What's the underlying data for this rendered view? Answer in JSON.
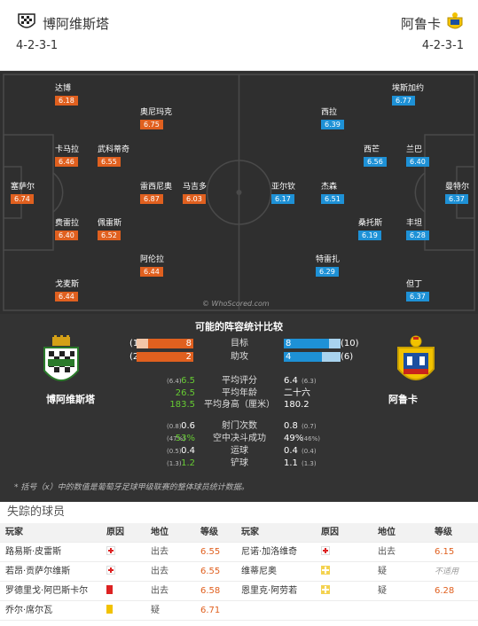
{
  "header": {
    "home_team": "博阿维斯塔",
    "away_team": "阿鲁卡",
    "home_formation": "4-2-3-1",
    "away_formation": "4-2-3-1"
  },
  "pitch": {
    "watermark": "© WhoScored.com",
    "home_players": [
      {
        "name": "达博",
        "rating": "6.18"
      },
      {
        "name": "奥尼玛克",
        "rating": "6.75"
      },
      {
        "name": "卡马拉",
        "rating": "6.46"
      },
      {
        "name": "武科蒂奇",
        "rating": "6.55"
      },
      {
        "name": "塞萨尔",
        "rating": "6.74"
      },
      {
        "name": "雷西尼奥",
        "rating": "6.87"
      },
      {
        "name": "马吉多",
        "rating": "6.03"
      },
      {
        "name": "费雷拉",
        "rating": "6.40"
      },
      {
        "name": "佩雷斯",
        "rating": "6.52"
      },
      {
        "name": "阿伦拉",
        "rating": "6.44"
      },
      {
        "name": "戈麦斯",
        "rating": "6.44"
      }
    ],
    "away_players": [
      {
        "name": "埃斯加约",
        "rating": "6.77"
      },
      {
        "name": "西拉",
        "rating": "6.39"
      },
      {
        "name": "西芒",
        "rating": "6.56"
      },
      {
        "name": "兰巴",
        "rating": "6.40"
      },
      {
        "name": "亚尔钦",
        "rating": "6.17"
      },
      {
        "name": "杰森",
        "rating": "6.51"
      },
      {
        "name": "曼特尔",
        "rating": "6.37"
      },
      {
        "name": "桑托斯",
        "rating": "6.19"
      },
      {
        "name": "丰坦",
        "rating": "6.28"
      },
      {
        "name": "特雷扎",
        "rating": "6.29"
      },
      {
        "name": "但丁",
        "rating": "6.37"
      }
    ]
  },
  "comparison": {
    "title": "可能的阵容统计比较",
    "home_name": "博阿维斯塔",
    "away_name": "阿鲁卡",
    "bars": [
      {
        "label": "目标",
        "home": "8",
        "home_league": "(10)",
        "home_fraction": 0.8,
        "away": "8",
        "away_league": "(10)",
        "away_fraction": 0.8
      },
      {
        "label": "助攻",
        "home": "2",
        "home_league": "(2)",
        "home_fraction": 1.0,
        "away": "4",
        "away_league": "(6)",
        "away_fraction": 0.67
      }
    ],
    "rows": [
      {
        "label": "平均评分",
        "home_paren": "(6.4)",
        "home": "6.5",
        "away": "6.4",
        "away_paren": "(6.3)",
        "home_good": true
      },
      {
        "label": "平均年龄",
        "home_paren": "",
        "home": "26.5",
        "away": "二十六",
        "away_paren": "",
        "home_good": true
      },
      {
        "label": "平均身高（厘米）",
        "home_paren": "",
        "home": "183.5",
        "away": "180.2",
        "away_paren": "",
        "home_good": true
      },
      {
        "label": "射门次数",
        "home_paren": "(0.8)",
        "home": "0.6",
        "away": "0.8",
        "away_paren": "(0.7)",
        "home_good": false
      },
      {
        "label": "空中决斗成功",
        "home_paren": "(47%)",
        "home": "53%",
        "away": "49%",
        "away_paren": "(46%)",
        "home_good": true
      },
      {
        "label": "运球",
        "home_paren": "(0.5)",
        "home": "0.4",
        "away": "0.4",
        "away_paren": "(0.4)",
        "home_good": false
      },
      {
        "label": "铲球",
        "home_paren": "(1.3)",
        "home": "1.2",
        "away": "1.1",
        "away_paren": "(1.3)",
        "home_good": true
      }
    ],
    "footnote": "* 括号（x）中的数值是葡萄牙足球甲级联赛的整体球员统计数据。"
  },
  "missing": {
    "title": "失踪的球员",
    "headers": [
      "玩家",
      "原因",
      "地位",
      "等级",
      "玩家",
      "原因",
      "地位",
      "等级"
    ],
    "rows": [
      {
        "l_player": "路易斯·皮雷斯",
        "l_reason": "injury",
        "l_status": "出去",
        "l_rating": "6.55",
        "r_player": "尼诺·加洛维奇",
        "r_reason": "injury",
        "r_status": "出去",
        "r_rating": "6.15"
      },
      {
        "l_player": "若昂·贡萨尔维斯",
        "l_reason": "injury",
        "l_status": "出去",
        "l_rating": "6.55",
        "r_player": "维蒂尼奥",
        "r_reason": "doubt",
        "r_status": "疑",
        "r_rating": "不适用"
      },
      {
        "l_player": "罗德里戈·阿巴斯卡尔",
        "l_reason": "red-card",
        "l_status": "出去",
        "l_rating": "6.58",
        "r_player": "恩里克·阿劳若",
        "r_reason": "doubt",
        "r_status": "疑",
        "r_rating": "6.28"
      },
      {
        "l_player": "乔尔·席尔瓦",
        "l_reason": "yellow-card",
        "l_status": "疑",
        "l_rating": "6.71",
        "r_player": "",
        "r_reason": "",
        "r_status": "",
        "r_rating": ""
      }
    ]
  },
  "colors": {
    "home": "#e0601f",
    "away": "#1e91d6",
    "pitch": "#2f2f2f",
    "panel": "#333333",
    "good": "#66cc33"
  }
}
